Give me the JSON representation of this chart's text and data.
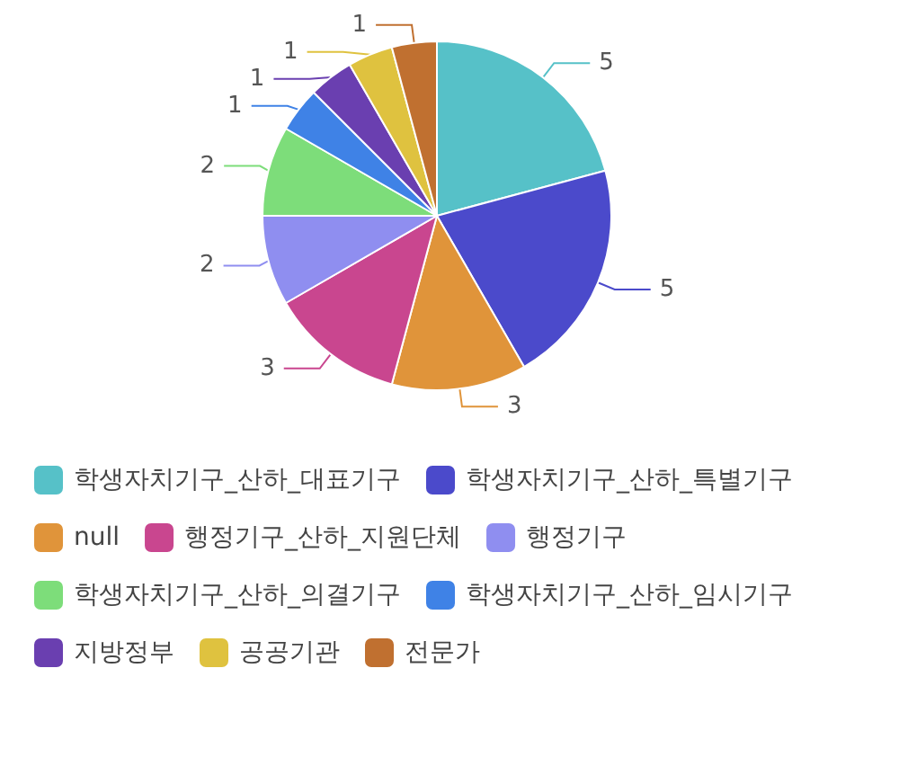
{
  "chart_data": {
    "type": "pie",
    "categories": [
      "학생자치기구_산하_대표기구",
      "학생자치기구_산하_특별기구",
      "null",
      "행정기구_산하_지원단체",
      "행정기구",
      "학생자치기구_산하_의결기구",
      "학생자치기구_산하_임시기구",
      "지방정부",
      "공공기관",
      "전문가"
    ],
    "values": [
      5,
      5,
      3,
      3,
      2,
      2,
      1,
      1,
      1,
      1
    ],
    "colors": [
      "#56c1c8",
      "#4b4acb",
      "#e0943a",
      "#c9468f",
      "#8f8ef0",
      "#7ddd7a",
      "#3f82e6",
      "#6a3fb0",
      "#dfc23f",
      "#c07030"
    ],
    "data_labels": true,
    "legend": "bottom"
  }
}
